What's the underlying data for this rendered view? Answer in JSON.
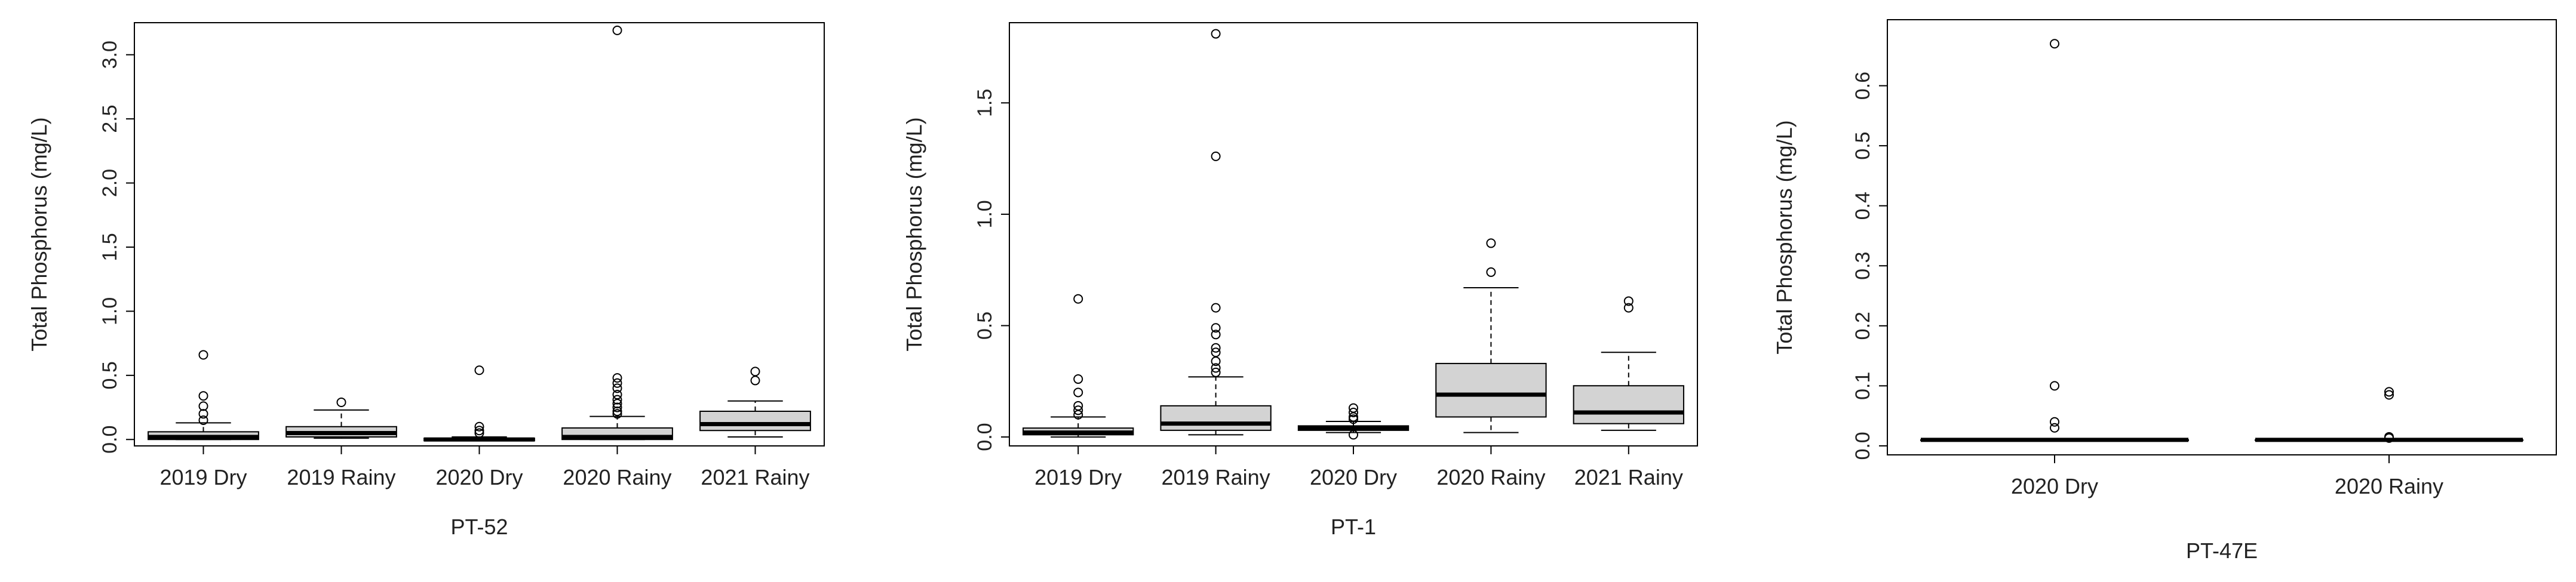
{
  "figure": {
    "style": {
      "box_fill": "#d3d3d3",
      "line_color": "#000000",
      "background": "#ffffff"
    }
  },
  "chart_data": [
    {
      "type": "boxplot",
      "title": "",
      "xlabel": "PT-52",
      "ylabel": "Total Phosphorus (mg/L)",
      "ylim": [
        -0.05,
        3.25
      ],
      "yticks": [
        0.0,
        0.5,
        1.0,
        1.5,
        2.0,
        2.5,
        3.0
      ],
      "ytick_labels": [
        "0.0",
        "0.5",
        "1.0",
        "1.5",
        "2.0",
        "2.5",
        "3.0"
      ],
      "categories": [
        "2019 Dry",
        "2019 Rainy",
        "2020 Dry",
        "2020 Rainy",
        "2021 Rainy"
      ],
      "boxes": [
        {
          "category": "2019 Dry",
          "whisker_low": 0.0,
          "q1": 0.0,
          "median": 0.02,
          "q3": 0.06,
          "whisker_high": 0.13,
          "outliers": [
            0.15,
            0.2,
            0.26,
            0.34,
            0.66
          ]
        },
        {
          "category": "2019 Rainy",
          "whisker_low": 0.01,
          "q1": 0.02,
          "median": 0.05,
          "q3": 0.1,
          "whisker_high": 0.23,
          "outliers": [
            0.29
          ]
        },
        {
          "category": "2020 Dry",
          "whisker_low": -0.01,
          "q1": -0.01,
          "median": 0.0,
          "q3": 0.01,
          "whisker_high": 0.02,
          "outliers": [
            0.05,
            0.07,
            0.1,
            0.54
          ]
        },
        {
          "category": "2020 Rainy",
          "whisker_low": 0.0,
          "q1": 0.0,
          "median": 0.02,
          "q3": 0.09,
          "whisker_high": 0.18,
          "outliers": [
            0.2,
            0.22,
            0.25,
            0.28,
            0.31,
            0.35,
            0.4,
            0.44,
            0.48,
            3.19
          ]
        },
        {
          "category": "2021 Rainy",
          "whisker_low": 0.02,
          "q1": 0.07,
          "median": 0.12,
          "q3": 0.22,
          "whisker_high": 0.3,
          "outliers": [
            0.46,
            0.53
          ]
        }
      ]
    },
    {
      "type": "boxplot",
      "title": "",
      "xlabel": "PT-1",
      "ylabel": "Total Phosphorus (mg/L)",
      "ylim": [
        -0.04,
        1.86
      ],
      "yticks": [
        0.0,
        0.5,
        1.0,
        1.5
      ],
      "ytick_labels": [
        "0.0",
        "0.5",
        "1.0",
        "1.5"
      ],
      "categories": [
        "2019 Dry",
        "2019 Rainy",
        "2020 Dry",
        "2020 Rainy",
        "2021 Rainy"
      ],
      "boxes": [
        {
          "category": "2019 Dry",
          "whisker_low": 0.0,
          "q1": 0.01,
          "median": 0.02,
          "q3": 0.04,
          "whisker_high": 0.09,
          "outliers": [
            0.1,
            0.12,
            0.14,
            0.2,
            0.26,
            0.62
          ]
        },
        {
          "category": "2019 Rainy",
          "whisker_low": 0.01,
          "q1": 0.03,
          "median": 0.06,
          "q3": 0.14,
          "whisker_high": 0.27,
          "outliers": [
            0.29,
            0.31,
            0.34,
            0.38,
            0.4,
            0.46,
            0.49,
            0.58,
            1.26,
            1.81
          ]
        },
        {
          "category": "2020 Dry",
          "whisker_low": 0.02,
          "q1": 0.03,
          "median": 0.04,
          "q3": 0.05,
          "whisker_high": 0.07,
          "outliers": [
            0.01,
            0.08,
            0.09,
            0.11,
            0.13
          ]
        },
        {
          "category": "2020 Rainy",
          "whisker_low": 0.02,
          "q1": 0.09,
          "median": 0.19,
          "q3": 0.33,
          "whisker_high": 0.67,
          "outliers": [
            0.74,
            0.87
          ]
        },
        {
          "category": "2021 Rainy",
          "whisker_low": 0.03,
          "q1": 0.06,
          "median": 0.11,
          "q3": 0.23,
          "whisker_high": 0.38,
          "outliers": [
            0.58,
            0.61
          ]
        }
      ]
    },
    {
      "type": "boxplot",
      "title": "",
      "xlabel": "PT-47E",
      "ylabel": "Total Phosphorus (mg/L)",
      "ylim": [
        -0.015,
        0.71
      ],
      "yticks": [
        0.0,
        0.1,
        0.2,
        0.3,
        0.4,
        0.5,
        0.6
      ],
      "ytick_labels": [
        "0.0",
        "0.1",
        "0.2",
        "0.3",
        "0.4",
        "0.5",
        "0.6"
      ],
      "categories": [
        "2020 Dry",
        "2020 Rainy"
      ],
      "boxes": [
        {
          "category": "2020 Dry",
          "whisker_low": 0.01,
          "q1": 0.01,
          "median": 0.01,
          "q3": 0.01,
          "whisker_high": 0.01,
          "outliers": [
            0.03,
            0.04,
            0.1,
            0.67
          ]
        },
        {
          "category": "2020 Rainy",
          "whisker_low": 0.01,
          "q1": 0.01,
          "median": 0.01,
          "q3": 0.01,
          "whisker_high": 0.01,
          "outliers": [
            0.013,
            0.015,
            0.085,
            0.09
          ]
        }
      ]
    }
  ]
}
